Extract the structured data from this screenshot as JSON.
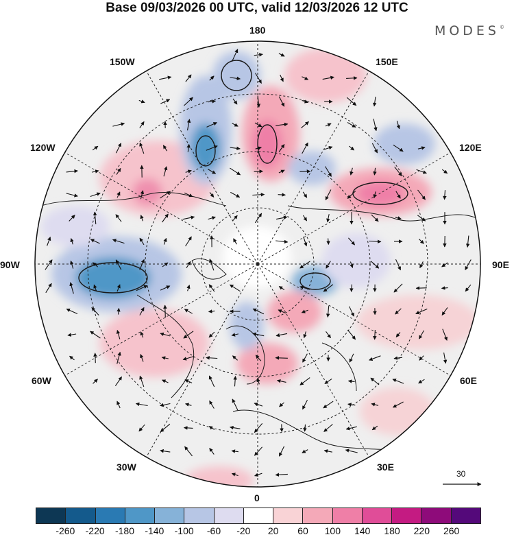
{
  "header": {
    "title": "Base 09/03/2026 00 UTC, valid 12/03/2026 12 UTC",
    "brand": "MODES",
    "brand_mark": "©"
  },
  "map": {
    "projection": "north-polar-stereographic",
    "longitude_labels": [
      "180",
      "150E",
      "120E",
      "90E",
      "60E",
      "30E",
      "0",
      "30W",
      "60W",
      "90W",
      "120W",
      "150W"
    ],
    "reference_vector": {
      "label": "30"
    },
    "colors": {
      "land_outline": "#1a1a1a",
      "grid": "#222222",
      "wind_arrows": "#111111"
    }
  },
  "colorbar": {
    "tick_labels": [
      "-260",
      "-220",
      "-180",
      "-140",
      "-100",
      "-60",
      "-20",
      "20",
      "60",
      "100",
      "140",
      "180",
      "220",
      "260"
    ],
    "colors": [
      "#0d3754",
      "#145a8c",
      "#2a7ab3",
      "#4f97c7",
      "#86b2d8",
      "#b7c6e5",
      "#dedcf0",
      "#ffffff",
      "#f9d3d6",
      "#f4a9b8",
      "#ef7fa7",
      "#e04d98",
      "#c41b82",
      "#8e0b7a",
      "#54097a"
    ]
  }
}
